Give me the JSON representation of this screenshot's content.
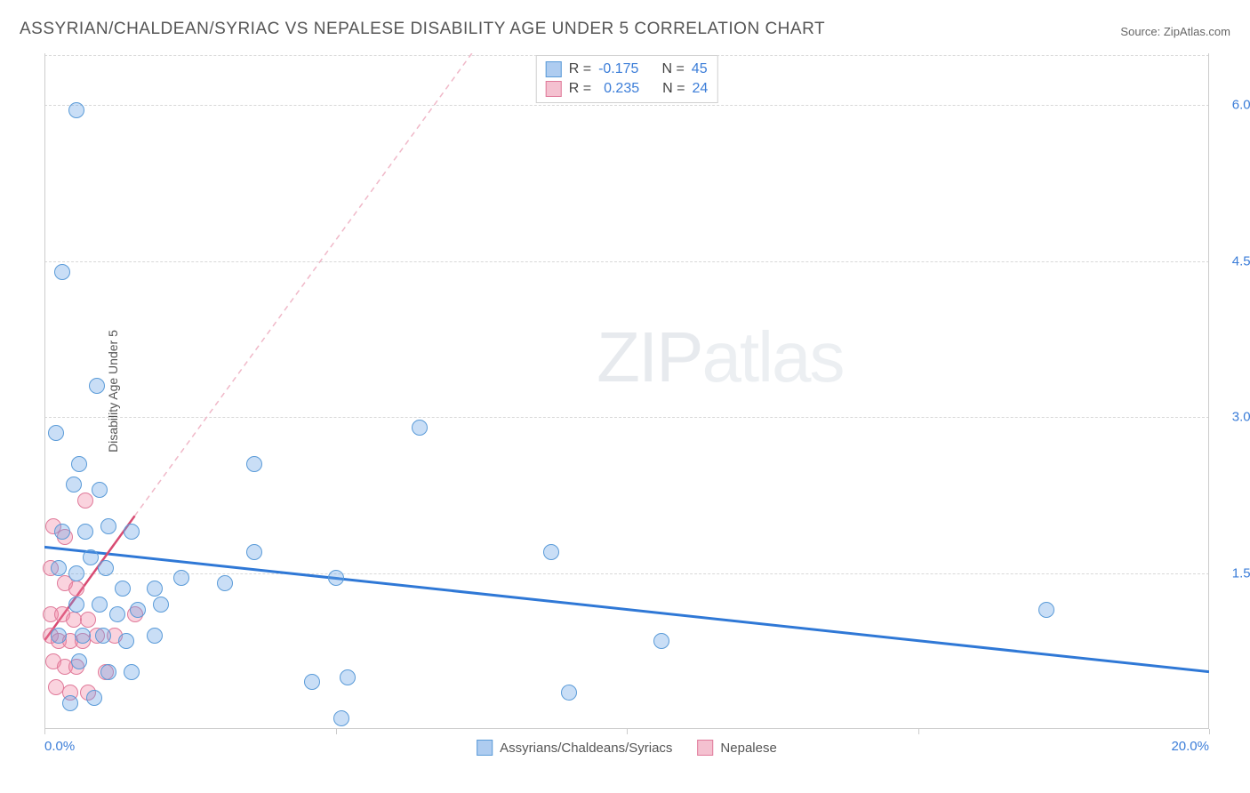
{
  "title": "ASSYRIAN/CHALDEAN/SYRIAC VS NEPALESE DISABILITY AGE UNDER 5 CORRELATION CHART",
  "source_label": "Source:",
  "source_name": "ZipAtlas.com",
  "ylabel": "Disability Age Under 5",
  "watermark": {
    "bold": "ZIP",
    "light": "atlas"
  },
  "chart": {
    "type": "scatter",
    "xlim": [
      0,
      20
    ],
    "ylim": [
      0,
      6.5
    ],
    "x_ticks": [
      0,
      5,
      10,
      15,
      20
    ],
    "x_tick_labels": [
      "0.0%",
      "",
      "",
      "",
      "20.0%"
    ],
    "y_ticks": [
      1.5,
      3.0,
      4.5,
      6.0
    ],
    "y_tick_labels": [
      "1.5%",
      "3.0%",
      "4.5%",
      "6.0%"
    ],
    "background_color": "#ffffff",
    "grid_color": "#d8d8d8",
    "axis_color": "#cccccc",
    "tick_label_color": "#3b7dd8",
    "point_radius": 9,
    "point_border_width": 1.5,
    "series": [
      {
        "name": "Assyrians/Chaldeans/Syriacs",
        "fill": "rgba(100,160,230,0.35)",
        "stroke": "#5a9bd8",
        "swatch_fill": "#aeccf0",
        "swatch_stroke": "#5a9bd8",
        "R": "-0.175",
        "N": "45",
        "trend": {
          "x1": 0,
          "y1": 1.75,
          "x2": 20,
          "y2": 0.55,
          "color": "#2f78d6",
          "width": 3,
          "dash": ""
        },
        "points": [
          [
            0.3,
            4.4
          ],
          [
            0.55,
            5.95
          ],
          [
            0.9,
            3.3
          ],
          [
            0.2,
            2.85
          ],
          [
            0.6,
            2.55
          ],
          [
            0.5,
            2.35
          ],
          [
            0.95,
            2.3
          ],
          [
            0.3,
            1.9
          ],
          [
            0.7,
            1.9
          ],
          [
            1.1,
            1.95
          ],
          [
            1.5,
            1.9
          ],
          [
            0.25,
            1.55
          ],
          [
            0.55,
            1.5
          ],
          [
            0.8,
            1.65
          ],
          [
            1.05,
            1.55
          ],
          [
            1.35,
            1.35
          ],
          [
            1.9,
            1.35
          ],
          [
            2.35,
            1.45
          ],
          [
            0.55,
            1.2
          ],
          [
            0.95,
            1.2
          ],
          [
            1.25,
            1.1
          ],
          [
            1.6,
            1.15
          ],
          [
            2.0,
            1.2
          ],
          [
            0.25,
            0.9
          ],
          [
            0.65,
            0.9
          ],
          [
            1.0,
            0.9
          ],
          [
            1.4,
            0.85
          ],
          [
            1.9,
            0.9
          ],
          [
            0.6,
            0.65
          ],
          [
            1.1,
            0.55
          ],
          [
            1.5,
            0.55
          ],
          [
            0.85,
            0.3
          ],
          [
            0.45,
            0.25
          ],
          [
            3.6,
            2.55
          ],
          [
            3.6,
            1.7
          ],
          [
            3.1,
            1.4
          ],
          [
            5.0,
            1.45
          ],
          [
            4.6,
            0.45
          ],
          [
            5.2,
            0.5
          ],
          [
            5.1,
            0.1
          ],
          [
            6.45,
            2.9
          ],
          [
            8.7,
            1.7
          ],
          [
            9.0,
            0.35
          ],
          [
            10.6,
            0.85
          ],
          [
            17.2,
            1.15
          ]
        ]
      },
      {
        "name": "Nepalese",
        "fill": "rgba(240,130,160,0.35)",
        "stroke": "#e07a9a",
        "swatch_fill": "#f4c1d0",
        "swatch_stroke": "#e07a9a",
        "R": "0.235",
        "N": "24",
        "trend": {
          "x1": 0,
          "y1": 0.85,
          "x2": 1.55,
          "y2": 2.05,
          "color": "#d84a72",
          "width": 2.5,
          "dash": ""
        },
        "trend_ext": {
          "x1": 1.55,
          "y1": 2.05,
          "x2": 7.6,
          "y2": 6.7,
          "color": "#f0b8c8",
          "width": 1.5,
          "dash": "6 5"
        },
        "points": [
          [
            0.15,
            1.95
          ],
          [
            0.35,
            1.85
          ],
          [
            0.7,
            2.2
          ],
          [
            0.1,
            1.55
          ],
          [
            0.35,
            1.4
          ],
          [
            0.55,
            1.35
          ],
          [
            0.1,
            1.1
          ],
          [
            0.3,
            1.1
          ],
          [
            0.5,
            1.05
          ],
          [
            0.75,
            1.05
          ],
          [
            0.1,
            0.9
          ],
          [
            0.25,
            0.85
          ],
          [
            0.45,
            0.85
          ],
          [
            0.65,
            0.85
          ],
          [
            0.9,
            0.9
          ],
          [
            1.2,
            0.9
          ],
          [
            0.15,
            0.65
          ],
          [
            0.35,
            0.6
          ],
          [
            0.55,
            0.6
          ],
          [
            0.2,
            0.4
          ],
          [
            0.45,
            0.35
          ],
          [
            0.75,
            0.35
          ],
          [
            1.05,
            0.55
          ],
          [
            1.55,
            1.1
          ]
        ]
      }
    ]
  },
  "legend_top": {
    "rows": [
      {
        "swatch": 0,
        "R_label": "R =",
        "R_val": "-0.175",
        "N_label": "N =",
        "N_val": "45"
      },
      {
        "swatch": 1,
        "R_label": "R =",
        "R_val": "0.235",
        "N_label": "N =",
        "N_val": "24"
      }
    ]
  },
  "legend_bottom": {
    "items": [
      {
        "swatch": 0,
        "label": "Assyrians/Chaldeans/Syriacs"
      },
      {
        "swatch": 1,
        "label": "Nepalese"
      }
    ]
  }
}
